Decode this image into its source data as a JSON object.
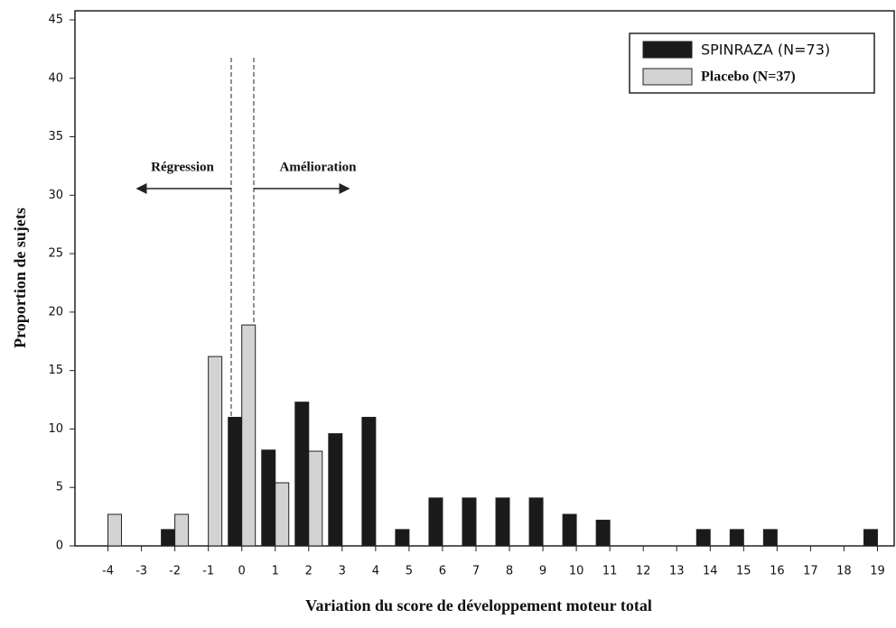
{
  "chart_data": {
    "type": "bar",
    "x_label": "Variation du score de développement moteur total",
    "y_label": "Proportion de sujets",
    "annotations": [
      "Régression",
      "Amélioration"
    ],
    "categories": [
      "-4",
      "-3",
      "-2",
      "-1",
      "0",
      "1",
      "2",
      "3",
      "4",
      "5",
      "6",
      "7",
      "8",
      "9",
      "10",
      "11",
      "12",
      "13",
      "14",
      "15",
      "16",
      "17",
      "18",
      "19"
    ],
    "series": [
      {
        "name": "SPINRAZA (N=73)",
        "color": "#1a1a1a",
        "values": [
          0,
          0,
          1.4,
          0,
          11.0,
          8.2,
          12.3,
          9.6,
          11.0,
          1.4,
          4.1,
          4.1,
          4.1,
          4.1,
          2.7,
          2.2,
          0,
          0,
          1.4,
          1.4,
          1.4,
          0,
          0,
          1.4
        ]
      },
      {
        "name": "Placebo (N=37)",
        "color": "#d3d3d3",
        "values": [
          2.7,
          0,
          2.7,
          16.2,
          18.9,
          5.4,
          8.1,
          0,
          0,
          0,
          0,
          0,
          0,
          0,
          0,
          0,
          0,
          0,
          0,
          0,
          0,
          0,
          0,
          0
        ]
      }
    ],
    "ylim": [
      0,
      45
    ],
    "yticks": [
      0,
      5,
      10,
      15,
      20,
      25,
      30,
      35,
      40,
      45
    ],
    "legend": "top-right"
  }
}
